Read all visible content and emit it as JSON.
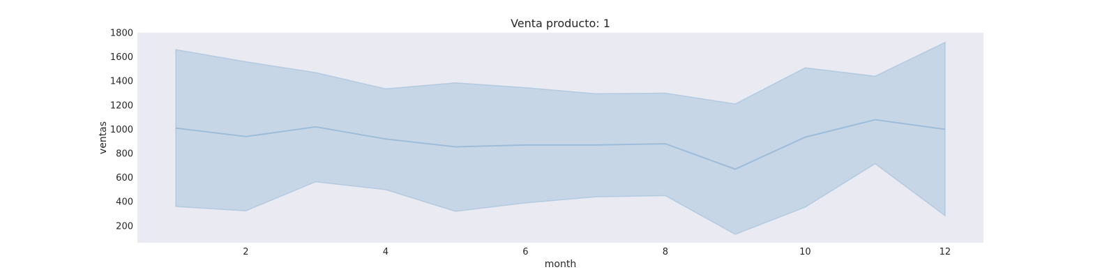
{
  "chart_data": {
    "type": "line",
    "title": "Venta producto: 1",
    "xlabel": "month",
    "ylabel": "ventas",
    "xlim": [
      0.45,
      12.55
    ],
    "ylim": [
      60,
      1800
    ],
    "xticks": [
      2,
      4,
      6,
      8,
      10,
      12
    ],
    "yticks": [
      200,
      400,
      600,
      800,
      1000,
      1200,
      1400,
      1600,
      1800
    ],
    "grid": false,
    "x": [
      1,
      2,
      3,
      4,
      5,
      6,
      7,
      8,
      9,
      10,
      11,
      12
    ],
    "series": [
      {
        "values": [
          1010,
          940,
          1020,
          920,
          855,
          870,
          870,
          880,
          670,
          935,
          1080,
          1000
        ],
        "band_lower": [
          360,
          325,
          565,
          500,
          320,
          390,
          440,
          450,
          130,
          355,
          715,
          285
        ],
        "band_upper": [
          1660,
          1560,
          1470,
          1335,
          1385,
          1345,
          1295,
          1300,
          1210,
          1510,
          1440,
          1720
        ]
      }
    ],
    "colors": {
      "plot_background": "#eaeaf2",
      "band_fill": "#a9c4df",
      "line": "#9dbcd9",
      "text": "#262626"
    }
  }
}
